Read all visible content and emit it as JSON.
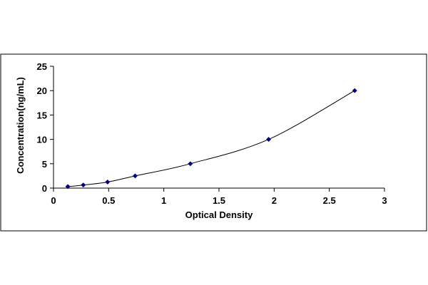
{
  "chart_data": {
    "type": "scatter",
    "title": "",
    "xlabel": "Optical Density",
    "ylabel": "Concentration(ng/mL)",
    "xlim": [
      0,
      3
    ],
    "ylim": [
      0,
      25
    ],
    "x_ticks": [
      "0",
      "0.5",
      "1",
      "1.5",
      "2",
      "2.5",
      "3"
    ],
    "y_ticks": [
      "0",
      "5",
      "10",
      "15",
      "20",
      "25"
    ],
    "grid": false,
    "legend": "none",
    "fit_line": "smooth curve through points",
    "colors": {
      "marker": "#00007f",
      "curve": "#000000",
      "axes": "#000000",
      "frame": "#000000"
    },
    "series": [
      {
        "x": [
          0.13,
          0.27,
          0.49,
          0.74,
          1.24,
          1.95,
          2.73
        ],
        "y": [
          0.31,
          0.63,
          1.25,
          2.5,
          5,
          10,
          20
        ]
      }
    ]
  }
}
